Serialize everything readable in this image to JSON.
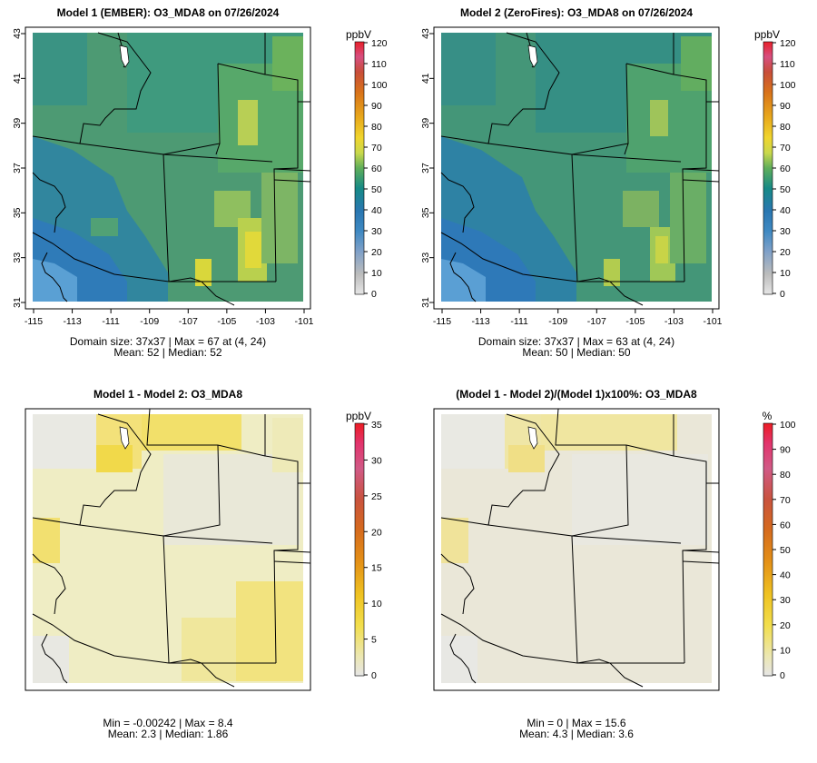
{
  "panels": [
    {
      "id": "p1",
      "title": "Model 1 (EMBER): O3_MDA8 on 07/26/2024",
      "unit": "ppbV",
      "colorbar_ticks": [
        "0",
        "10",
        "20",
        "30",
        "40",
        "50",
        "60",
        "70",
        "80",
        "90",
        "100",
        "110",
        "120"
      ],
      "x_ticks": [
        "-115",
        "-113",
        "-111",
        "-109",
        "-107",
        "-105",
        "-103",
        "-101"
      ],
      "y_ticks": [
        "31",
        "33",
        "35",
        "37",
        "39",
        "41",
        "43"
      ],
      "stats": [
        "Domain size: 37x37 | Max = 67 at (4, 24)",
        "Mean: 52 |  Median: 52"
      ]
    },
    {
      "id": "p2",
      "title": "Model 2 (ZeroFires): O3_MDA8 on 07/26/2024",
      "unit": "ppbV",
      "colorbar_ticks": [
        "0",
        "10",
        "20",
        "30",
        "40",
        "50",
        "60",
        "70",
        "80",
        "90",
        "100",
        "110",
        "120"
      ],
      "x_ticks": [
        "-115",
        "-113",
        "-111",
        "-109",
        "-107",
        "-105",
        "-103",
        "-101"
      ],
      "y_ticks": [
        "31",
        "33",
        "35",
        "37",
        "39",
        "41",
        "43"
      ],
      "stats": [
        "Domain size: 37x37 | Max = 63 at (4, 24)",
        "Mean: 50 |  Median: 50"
      ]
    },
    {
      "id": "p3",
      "title": "Model 1 - Model 2: O3_MDA8",
      "unit": "ppbV",
      "colorbar_ticks": [
        "0",
        "5",
        "10",
        "15",
        "20",
        "25",
        "30",
        "35"
      ],
      "stats": [
        "Min = -0.00242 | Max = 8.4",
        "Mean: 2.3 |  Median: 1.86"
      ]
    },
    {
      "id": "p4",
      "title": "(Model 1 - Model 2)/(Model 1)x100%: O3_MDA8",
      "unit": "%",
      "colorbar_ticks": [
        "0",
        "10",
        "20",
        "30",
        "40",
        "50",
        "60",
        "70",
        "80",
        "90",
        "100"
      ],
      "stats": [
        "Min = 0 | Max = 15.6",
        "Mean: 4.3 |  Median: 3.6"
      ]
    }
  ],
  "colors": {
    "frame": "#000000",
    "state_lines": "#000000"
  }
}
